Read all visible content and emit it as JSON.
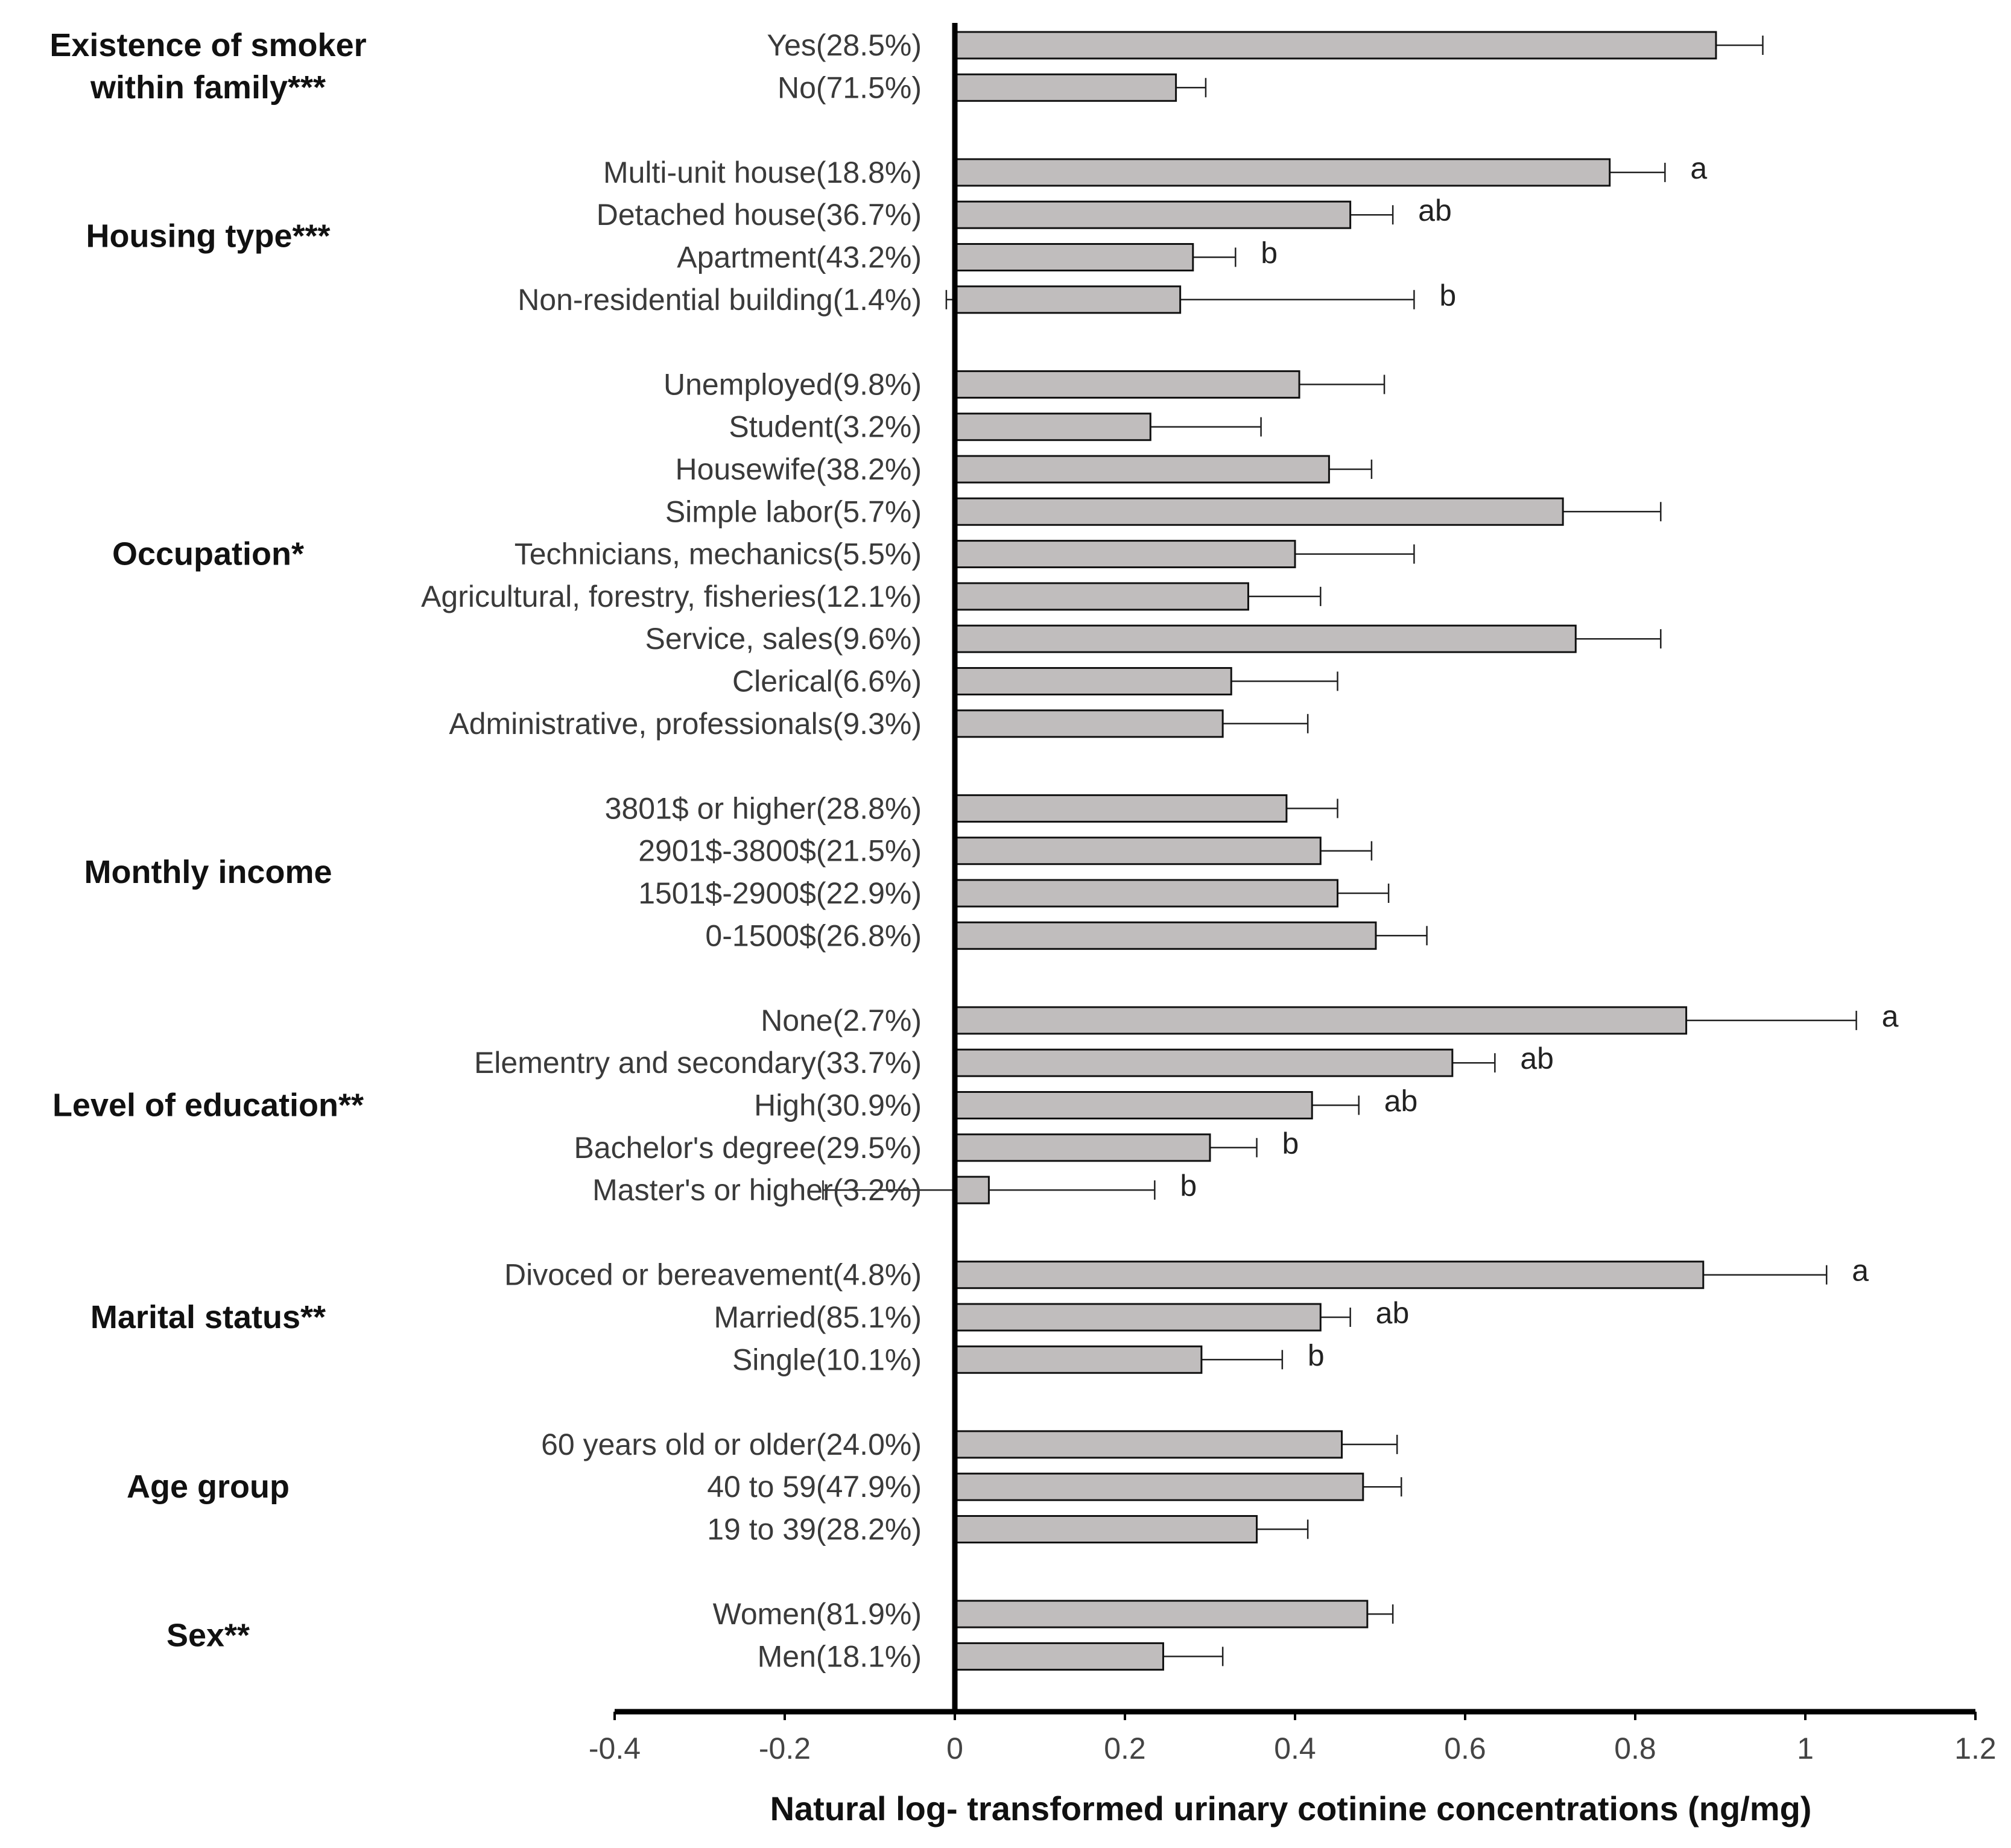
{
  "chart_data": {
    "type": "bar",
    "orientation": "horizontal",
    "xlabel": "Natural log- transformed urinary cotinine concentrations (ng/mg)",
    "xlim": [
      -0.4,
      1.2
    ],
    "xticks": [
      "-0.4",
      "-0.2",
      "0",
      "0.2",
      "0.4",
      "0.6",
      "0.8",
      "1",
      "1.2"
    ],
    "bar_color": "#c0bdbd",
    "groups": [
      {
        "label": [
          "Existence of smoker",
          "within family***"
        ],
        "items": [
          {
            "label": "Yes(28.5%)",
            "value": 0.895,
            "ci": [
              0.84,
              0.95
            ],
            "sig": ""
          },
          {
            "label": "No(71.5%)",
            "value": 0.26,
            "ci": [
              0.22,
              0.295
            ],
            "sig": ""
          }
        ]
      },
      {
        "label": [
          "Housing type***"
        ],
        "items": [
          {
            "label": "Multi-unit house(18.8%)",
            "value": 0.77,
            "ci": [
              0.7,
              0.835
            ],
            "sig": "a"
          },
          {
            "label": "Detached house(36.7%)",
            "value": 0.465,
            "ci": [
              0.415,
              0.515
            ],
            "sig": "ab"
          },
          {
            "label": "Apartment(43.2%)",
            "value": 0.28,
            "ci": [
              0.235,
              0.33
            ],
            "sig": "b"
          },
          {
            "label": "Non-residential building(1.4%)",
            "value": 0.265,
            "ci": [
              -0.01,
              0.54
            ],
            "sig": "b"
          }
        ]
      },
      {
        "label": [
          "Occupation*"
        ],
        "items": [
          {
            "label": "Unemployed(9.8%)",
            "value": 0.405,
            "ci": [
              0.305,
              0.505
            ],
            "sig": ""
          },
          {
            "label": "Student(3.2%)",
            "value": 0.23,
            "ci": [
              0.105,
              0.36
            ],
            "sig": ""
          },
          {
            "label": "Housewife(38.2%)",
            "value": 0.44,
            "ci": [
              0.39,
              0.49
            ],
            "sig": ""
          },
          {
            "label": "Simple labor(5.7%)",
            "value": 0.715,
            "ci": [
              0.6,
              0.83
            ],
            "sig": ""
          },
          {
            "label": "Technicians, mechanics(5.5%)",
            "value": 0.4,
            "ci": [
              0.265,
              0.54
            ],
            "sig": ""
          },
          {
            "label": "Agricultural, forestry, fisheries(12.1%)",
            "value": 0.345,
            "ci": [
              0.26,
              0.43
            ],
            "sig": ""
          },
          {
            "label": "Service, sales(9.6%)",
            "value": 0.73,
            "ci": [
              0.63,
              0.83
            ],
            "sig": ""
          },
          {
            "label": "Clerical(6.6%)",
            "value": 0.325,
            "ci": [
              0.195,
              0.45
            ],
            "sig": ""
          },
          {
            "label": "Administrative, professionals(9.3%)",
            "value": 0.315,
            "ci": [
              0.215,
              0.415
            ],
            "sig": ""
          }
        ]
      },
      {
        "label": [
          "Monthly income"
        ],
        "items": [
          {
            "label": "3801$ or higher(28.8%)",
            "value": 0.39,
            "ci": [
              0.33,
              0.45
            ],
            "sig": ""
          },
          {
            "label": "2901$-3800$(21.5%)",
            "value": 0.43,
            "ci": [
              0.365,
              0.49
            ],
            "sig": ""
          },
          {
            "label": "1501$-2900$(22.9%)",
            "value": 0.45,
            "ci": [
              0.39,
              0.51
            ],
            "sig": ""
          },
          {
            "label": "0-1500$(26.8%)",
            "value": 0.495,
            "ci": [
              0.435,
              0.555
            ],
            "sig": ""
          }
        ]
      },
      {
        "label": [
          "Level of education**"
        ],
        "items": [
          {
            "label": "None(2.7%)",
            "value": 0.86,
            "ci": [
              0.665,
              1.06
            ],
            "sig": "a"
          },
          {
            "label": "Elementry and secondary(33.7%)",
            "value": 0.585,
            "ci": [
              0.53,
              0.635
            ],
            "sig": "ab"
          },
          {
            "label": "High(30.9%)",
            "value": 0.42,
            "ci": [
              0.37,
              0.475
            ],
            "sig": "ab"
          },
          {
            "label": "Bachelor's degree(29.5%)",
            "value": 0.3,
            "ci": [
              0.24,
              0.355
            ],
            "sig": "b"
          },
          {
            "label": "Master's or higher(3.2%)",
            "value": 0.04,
            "ci": [
              -0.155,
              0.235
            ],
            "sig": "b"
          }
        ]
      },
      {
        "label": [
          "Marital status**"
        ],
        "items": [
          {
            "label": "Divoced or bereavement(4.8%)",
            "value": 0.88,
            "ci": [
              0.735,
              1.025
            ],
            "sig": "a"
          },
          {
            "label": "Married(85.1%)",
            "value": 0.43,
            "ci": [
              0.4,
              0.465
            ],
            "sig": "ab"
          },
          {
            "label": "Single(10.1%)",
            "value": 0.29,
            "ci": [
              0.2,
              0.385
            ],
            "sig": "b"
          }
        ]
      },
      {
        "label": [
          "Age group"
        ],
        "items": [
          {
            "label": "60 years old or older(24.0%)",
            "value": 0.455,
            "ci": [
              0.395,
              0.52
            ],
            "sig": ""
          },
          {
            "label": "40 to 59(47.9%)",
            "value": 0.48,
            "ci": [
              0.435,
              0.525
            ],
            "sig": ""
          },
          {
            "label": "19 to 39(28.2%)",
            "value": 0.355,
            "ci": [
              0.3,
              0.415
            ],
            "sig": ""
          }
        ]
      },
      {
        "label": [
          "Sex**"
        ],
        "items": [
          {
            "label": "Women(81.9%)",
            "value": 0.485,
            "ci": [
              0.455,
              0.515
            ],
            "sig": ""
          },
          {
            "label": "Men(18.1%)",
            "value": 0.245,
            "ci": [
              0.17,
              0.315
            ],
            "sig": ""
          }
        ]
      }
    ]
  }
}
